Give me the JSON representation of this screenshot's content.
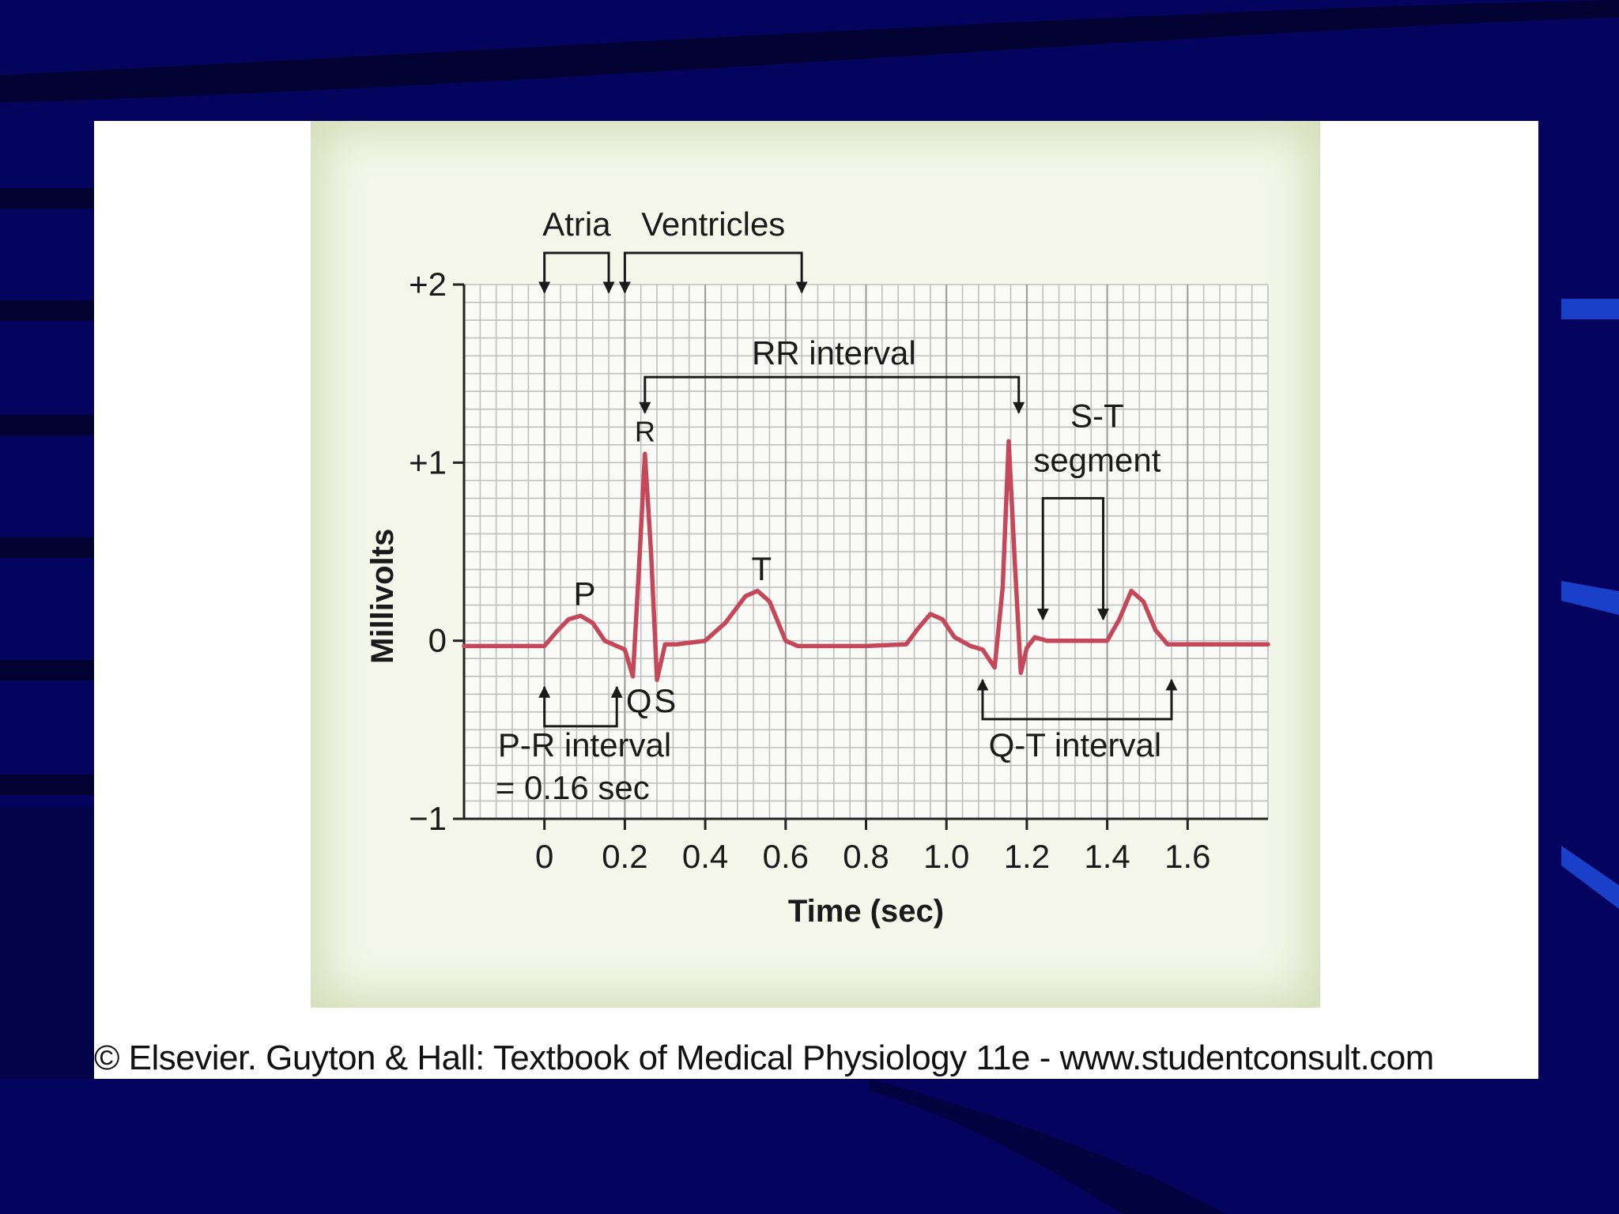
{
  "slide": {
    "background": "#04045e",
    "caption": "© Elsevier. Guyton & Hall: Textbook of Medical Physiology 11e - www.studentconsult.com"
  },
  "chart_data": {
    "type": "line",
    "xlabel": "Time (sec)",
    "ylabel": "Millivolts",
    "xlim": [
      -0.2,
      1.8
    ],
    "ylim": [
      -1,
      2
    ],
    "x_ticks": [
      0,
      0.2,
      0.4,
      0.6,
      0.8,
      1.0,
      1.2,
      1.4,
      1.6
    ],
    "x_tick_labels": [
      "0",
      "0.2",
      "0.4",
      "0.6",
      "0.8",
      "1.0",
      "1.2",
      "1.4",
      "1.6"
    ],
    "y_ticks": [
      -1,
      0,
      1,
      2
    ],
    "y_tick_labels": [
      "−1",
      "0",
      "+1",
      "+2"
    ],
    "grid": true,
    "grid_minor_step_x": 0.04,
    "grid_minor_step_y": 0.1,
    "series": [
      {
        "color": "#c4475a",
        "x": [
          -0.2,
          0.0,
          0.03,
          0.06,
          0.09,
          0.12,
          0.15,
          0.18,
          0.2,
          0.22,
          0.235,
          0.25,
          0.265,
          0.28,
          0.3,
          0.33,
          0.4,
          0.45,
          0.5,
          0.53,
          0.56,
          0.6,
          0.63,
          0.8,
          0.9,
          0.93,
          0.96,
          0.99,
          1.02,
          1.06,
          1.09,
          1.12,
          1.14,
          1.155,
          1.17,
          1.185,
          1.2,
          1.22,
          1.25,
          1.4,
          1.43,
          1.46,
          1.49,
          1.52,
          1.55,
          1.8
        ],
        "y": [
          -0.03,
          -0.03,
          0.05,
          0.12,
          0.14,
          0.1,
          0.0,
          -0.03,
          -0.05,
          -0.2,
          0.4,
          1.05,
          0.5,
          -0.22,
          -0.02,
          -0.02,
          0.0,
          0.1,
          0.25,
          0.28,
          0.22,
          0.0,
          -0.03,
          -0.03,
          -0.02,
          0.07,
          0.15,
          0.12,
          0.02,
          -0.03,
          -0.05,
          -0.15,
          0.3,
          1.12,
          0.45,
          -0.18,
          -0.04,
          0.02,
          0.0,
          0.0,
          0.12,
          0.28,
          0.22,
          0.06,
          -0.02,
          -0.02
        ]
      }
    ],
    "wave_labels": [
      {
        "text": "P",
        "x": 0.1,
        "y": 0.2
      },
      {
        "text": "R",
        "x": 0.25,
        "y": 1.12
      },
      {
        "text": "Q",
        "x": 0.235,
        "y": -0.4
      },
      {
        "text": "S",
        "x": 0.3,
        "y": -0.4
      },
      {
        "text": "T",
        "x": 0.54,
        "y": 0.34
      }
    ],
    "annotations": [
      {
        "type": "arrow_bracket",
        "text": "Atria",
        "x_start": 0.0,
        "x_end": 0.16,
        "position": "top"
      },
      {
        "type": "arrow_bracket",
        "text": "Ventricles",
        "x_start": 0.2,
        "x_end": 0.64,
        "position": "top"
      },
      {
        "type": "arrow_bracket",
        "text": "RR interval",
        "x_start": 0.25,
        "x_end": 1.18
      },
      {
        "type": "arrow_bracket",
        "text": "S-T segment",
        "text_lines": [
          "S-T",
          "segment"
        ],
        "x_start": 1.24,
        "x_end": 1.39
      },
      {
        "type": "arrow_bracket",
        "text": "P-R interval = 0.16 sec",
        "text_lines": [
          "P-R interval",
          "= 0.16 sec"
        ],
        "x_start": 0.0,
        "x_end": 0.18,
        "position": "bottom"
      },
      {
        "type": "arrow_bracket",
        "text": "Q-T interval",
        "x_start": 1.09,
        "x_end": 1.56,
        "position": "bottom"
      }
    ]
  }
}
